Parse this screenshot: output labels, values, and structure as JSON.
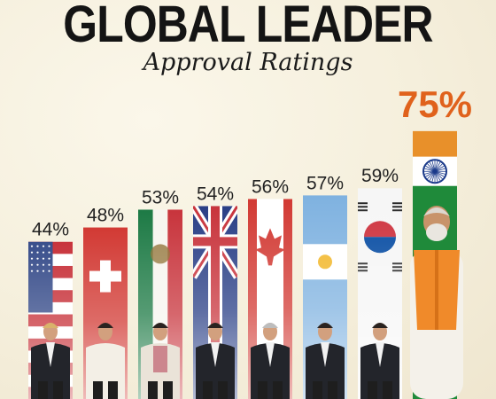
{
  "header": {
    "title": "GLOBAL LEADER",
    "subtitle": "Approval Ratings"
  },
  "chart_data": {
    "type": "bar",
    "title": "GLOBAL LEADER",
    "subtitle": "Approval Ratings",
    "categories": [
      "",
      "",
      "",
      "",
      "",
      "",
      "",
      ""
    ],
    "values": [
      44,
      48,
      53,
      54,
      56,
      57,
      59,
      75
    ],
    "labels": [
      "44%",
      "48%",
      "53%",
      "54%",
      "56%",
      "57%",
      "59%",
      "75%"
    ],
    "flags": [
      "united-states",
      "switzerland",
      "mexico",
      "united-kingdom",
      "canada",
      "argentina",
      "south-korea",
      "india"
    ],
    "highlight_index": 7,
    "ylim": [
      0,
      80
    ],
    "grid": false,
    "legend": "none",
    "colors": {
      "highlight_label": "#e0621c",
      "label": "#222222",
      "saffron": "#f08a2a",
      "india_green": "#1f8a3a",
      "suit_dark": "#23252b"
    }
  }
}
